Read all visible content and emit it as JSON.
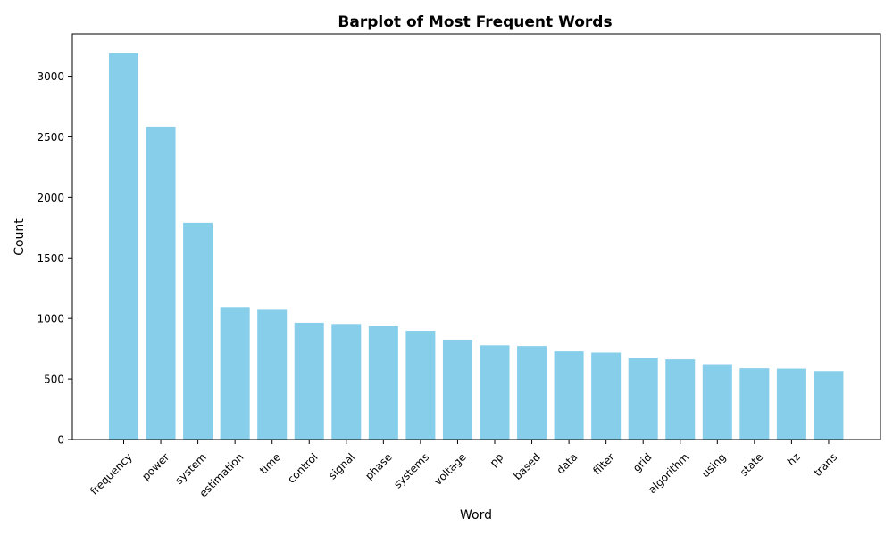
{
  "chart_data": {
    "type": "bar",
    "title": "Barplot of Most Frequent Words",
    "xlabel": "Word",
    "ylabel": "Count",
    "categories": [
      "frequency",
      "power",
      "system",
      "estimation",
      "time",
      "control",
      "signal",
      "phase",
      "systems",
      "voltage",
      "pp",
      "based",
      "data",
      "filter",
      "grid",
      "algorithm",
      "using",
      "state",
      "hz",
      "trans"
    ],
    "values": [
      3190,
      2585,
      1790,
      1095,
      1072,
      965,
      955,
      935,
      898,
      825,
      778,
      772,
      728,
      718,
      677,
      662,
      622,
      588,
      585,
      565
    ],
    "ylim": [
      0,
      3350
    ],
    "yticks": [
      0,
      500,
      1000,
      1500,
      2000,
      2500,
      3000
    ],
    "bar_color": "#87ceeb",
    "grid": false,
    "legend": "none"
  }
}
